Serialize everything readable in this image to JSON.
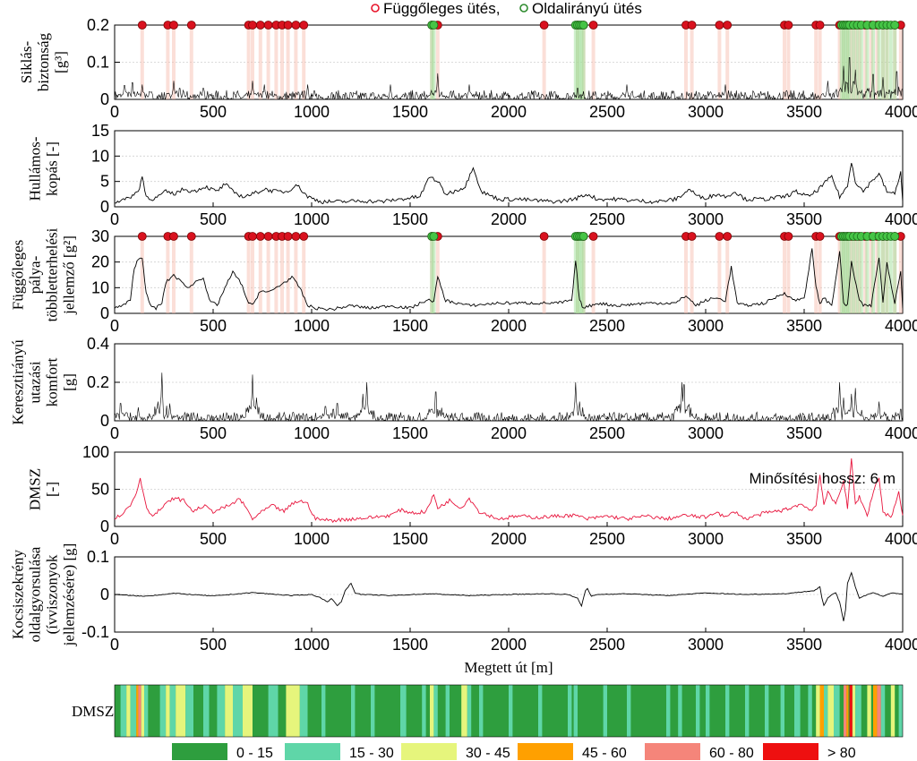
{
  "chart_data": [
    {
      "type": "line",
      "ylabel": [
        "Siklás-",
        "biztonság",
        "[g³]"
      ],
      "ylim": [
        0,
        0.2
      ],
      "yticks": [
        "0",
        "0.1",
        "0.2"
      ],
      "xlim": [
        0,
        4000
      ],
      "xticks": [
        "0",
        "500",
        "1000",
        "1500",
        "2000",
        "2500",
        "3000",
        "3500",
        "4000"
      ],
      "legend": {
        "items": [
          {
            "label": "Függőleges ütés,",
            "color": "#e8142a"
          },
          {
            "label": "Oldalirányú ütés",
            "color": "#2e8b2e"
          }
        ]
      },
      "peaks": [
        [
          50,
          0.05
        ],
        [
          90,
          0.06
        ],
        [
          140,
          0.04
        ],
        [
          300,
          0.05
        ],
        [
          330,
          0.04
        ],
        [
          450,
          0.04
        ],
        [
          700,
          0.05
        ],
        [
          760,
          0.04
        ],
        [
          980,
          0.04
        ],
        [
          1400,
          0.04
        ],
        [
          1640,
          0.07
        ],
        [
          1800,
          0.04
        ],
        [
          2350,
          0.04
        ],
        [
          2600,
          0.04
        ],
        [
          3100,
          0.04
        ],
        [
          3620,
          0.05
        ],
        [
          3700,
          0.09
        ],
        [
          3730,
          0.15
        ],
        [
          3760,
          0.08
        ],
        [
          3850,
          0.09
        ],
        [
          3900,
          0.06
        ],
        [
          3970,
          0.1
        ]
      ],
      "vertical_hits": [
        140,
        270,
        300,
        390,
        680,
        700,
        740,
        780,
        820,
        850,
        880,
        920,
        960,
        1610,
        1640,
        2180,
        2350,
        2380,
        2430,
        2900,
        2930,
        3070,
        3110,
        3400,
        3420,
        3560,
        3580,
        3680,
        3700,
        3720,
        3740,
        3760,
        3780,
        3810,
        3840,
        3870,
        3900,
        3920,
        3960,
        3990
      ],
      "lateral_hits": [
        1610,
        1620,
        2340,
        2350,
        2360,
        2370,
        2380,
        3690,
        3700,
        3710,
        3720,
        3730,
        3750,
        3770,
        3790,
        3820,
        3850,
        3880,
        3900,
        3920,
        3940,
        3960
      ]
    },
    {
      "type": "line",
      "ylabel": [
        "Hullámos-",
        "kopás [-]"
      ],
      "ylim": [
        0,
        15
      ],
      "yticks": [
        "0",
        "5",
        "10",
        "15"
      ],
      "xlim": [
        0,
        4000
      ],
      "xticks": [
        "0",
        "500",
        "1000",
        "1500",
        "2000",
        "2500",
        "3000",
        "3500",
        "4000"
      ],
      "x": [
        0,
        60,
        120,
        140,
        160,
        200,
        260,
        300,
        350,
        400,
        460,
        520,
        560,
        600,
        650,
        700,
        760,
        820,
        880,
        920,
        980,
        1050,
        1150,
        1250,
        1350,
        1450,
        1550,
        1600,
        1640,
        1680,
        1720,
        1780,
        1820,
        1860,
        1950,
        2050,
        2150,
        2250,
        2330,
        2400,
        2450,
        2550,
        2650,
        2750,
        2850,
        2920,
        2960,
        3000,
        3060,
        3100,
        3150,
        3200,
        3300,
        3400,
        3460,
        3520,
        3560,
        3600,
        3640,
        3680,
        3720,
        3740,
        3760,
        3800,
        3840,
        3880,
        3920,
        3960,
        3990,
        4000
      ],
      "y": [
        1,
        1.5,
        3,
        6,
        2,
        1.5,
        3,
        2.5,
        3.5,
        3,
        4,
        3,
        4.5,
        3,
        2,
        2.5,
        3.5,
        3,
        3,
        4.5,
        2,
        1,
        1,
        1.2,
        1,
        1.5,
        2,
        6,
        5,
        2.5,
        3,
        4,
        8,
        3,
        1.5,
        1.5,
        1.2,
        1,
        1.5,
        2.5,
        1.5,
        1.5,
        1.2,
        1,
        1.5,
        3.5,
        2,
        1.8,
        2.5,
        2,
        3,
        1.5,
        1.5,
        2,
        3,
        2,
        3,
        4.5,
        6,
        2,
        4,
        9,
        5,
        3,
        5,
        6.5,
        3,
        2.5,
        7,
        1
      ]
    },
    {
      "type": "line",
      "ylabel": [
        "Függőleges",
        "pálya-",
        "többletterhelési",
        "jellemző [g²]"
      ],
      "ylim": [
        0,
        30
      ],
      "yticks": [
        "0",
        "10",
        "20",
        "30"
      ],
      "xlim": [
        0,
        4000
      ],
      "xticks": [
        "0",
        "500",
        "1000",
        "1500",
        "2000",
        "2500",
        "3000",
        "3500",
        "4000"
      ],
      "x": [
        0,
        40,
        80,
        100,
        120,
        140,
        160,
        180,
        210,
        240,
        260,
        300,
        340,
        380,
        420,
        450,
        480,
        520,
        560,
        600,
        640,
        680,
        700,
        740,
        780,
        820,
        860,
        900,
        940,
        980,
        1020,
        1100,
        1200,
        1300,
        1400,
        1500,
        1580,
        1620,
        1640,
        1680,
        1800,
        1950,
        2100,
        2250,
        2320,
        2340,
        2360,
        2380,
        2450,
        2550,
        2700,
        2850,
        2900,
        2950,
        3000,
        3050,
        3100,
        3130,
        3160,
        3200,
        3300,
        3400,
        3450,
        3500,
        3540,
        3560,
        3580,
        3600,
        3640,
        3680,
        3700,
        3720,
        3740,
        3780,
        3800,
        3840,
        3880,
        3900,
        3920,
        3960,
        3990,
        4000
      ],
      "y": [
        2,
        3,
        5,
        18,
        21,
        22,
        8,
        3,
        2,
        4,
        12,
        15,
        12,
        10,
        13,
        14,
        5,
        3,
        10,
        16,
        12,
        4,
        3,
        9,
        8,
        10,
        12,
        14,
        10,
        3,
        2,
        1.5,
        3,
        2,
        3,
        2,
        5,
        5,
        14,
        5,
        3,
        4,
        4,
        4,
        5,
        20,
        5,
        2,
        4,
        3,
        4,
        4,
        7,
        3,
        5,
        6,
        5,
        18,
        4,
        3,
        4,
        8,
        5,
        6,
        25,
        10,
        4,
        6,
        3,
        24,
        4,
        3,
        20,
        5,
        3,
        3,
        22,
        4,
        20,
        4,
        17,
        2
      ]
    },
    {
      "type": "line",
      "ylabel": [
        "Keresztirányú",
        "utazási",
        "komfort",
        "[g]"
      ],
      "ylim": [
        0,
        0.4
      ],
      "yticks": [
        "0",
        "0.2",
        "0.4"
      ],
      "xlim": [
        0,
        4000
      ],
      "xticks": [
        "0",
        "500",
        "1000",
        "1500",
        "2000",
        "2500",
        "3000",
        "3500",
        "4000"
      ],
      "peaks": [
        [
          30,
          0.12
        ],
        [
          120,
          0.07
        ],
        [
          220,
          0.1
        ],
        [
          240,
          0.25
        ],
        [
          280,
          0.09
        ],
        [
          690,
          0.08
        ],
        [
          700,
          0.24
        ],
        [
          720,
          0.12
        ],
        [
          1070,
          0.1
        ],
        [
          1110,
          0.08
        ],
        [
          1130,
          0.12
        ],
        [
          1260,
          0.14
        ],
        [
          1270,
          0.08
        ],
        [
          1280,
          0.2
        ],
        [
          1610,
          0.08
        ],
        [
          1630,
          0.2
        ],
        [
          1650,
          0.07
        ],
        [
          2340,
          0.2
        ],
        [
          2360,
          0.1
        ],
        [
          2880,
          0.2
        ],
        [
          2890,
          0.25
        ],
        [
          2910,
          0.1
        ],
        [
          3680,
          0.2
        ],
        [
          3700,
          0.12
        ],
        [
          3740,
          0.14
        ],
        [
          3760,
          0.17
        ],
        [
          3880,
          0.1
        ],
        [
          3990,
          0.08
        ]
      ]
    },
    {
      "type": "line",
      "ylabel": [
        "DMSZ",
        "[-]"
      ],
      "ylim": [
        0,
        100
      ],
      "yticks": [
        "0",
        "50",
        "100"
      ],
      "xlim": [
        0,
        4000
      ],
      "xticks": [
        "0",
        "500",
        "1000",
        "1500",
        "2000",
        "2500",
        "3000",
        "3500",
        "4000"
      ],
      "annotation": "Minősítési hossz: 6 m",
      "color": "#e8143c",
      "x": [
        0,
        40,
        80,
        110,
        130,
        150,
        170,
        200,
        260,
        300,
        350,
        400,
        450,
        500,
        550,
        600,
        630,
        660,
        700,
        760,
        800,
        860,
        900,
        940,
        980,
        1020,
        1100,
        1200,
        1300,
        1400,
        1450,
        1520,
        1580,
        1620,
        1640,
        1660,
        1700,
        1760,
        1800,
        1850,
        1950,
        2050,
        2150,
        2250,
        2320,
        2350,
        2400,
        2500,
        2600,
        2700,
        2800,
        2900,
        3000,
        3050,
        3100,
        3150,
        3200,
        3300,
        3400,
        3480,
        3540,
        3560,
        3580,
        3600,
        3620,
        3660,
        3700,
        3720,
        3740,
        3760,
        3780,
        3820,
        3860,
        3880,
        3900,
        3940,
        3980,
        4000
      ],
      "y": [
        10,
        18,
        28,
        45,
        65,
        40,
        20,
        15,
        30,
        38,
        35,
        20,
        28,
        20,
        25,
        30,
        38,
        28,
        10,
        22,
        28,
        20,
        30,
        35,
        30,
        10,
        8,
        10,
        12,
        15,
        22,
        18,
        20,
        42,
        25,
        28,
        35,
        25,
        38,
        20,
        10,
        14,
        12,
        14,
        15,
        14,
        10,
        14,
        10,
        14,
        10,
        15,
        12,
        20,
        12,
        20,
        10,
        18,
        22,
        30,
        22,
        28,
        70,
        30,
        45,
        30,
        62,
        25,
        90,
        30,
        40,
        15,
        55,
        65,
        20,
        12,
        45,
        15
      ]
    },
    {
      "type": "line",
      "ylabel": [
        "Kocsiszekrény",
        "oldalgyorsulása",
        "(ívviszonyok",
        "jellemzésére) [g]"
      ],
      "xlabel": "Megtett út [m]",
      "ylim": [
        -0.1,
        0.1
      ],
      "yticks": [
        "-0.1",
        "0",
        "0.1"
      ],
      "xlim": [
        0,
        4000
      ],
      "xticks": [
        "0",
        "500",
        "1000",
        "1500",
        "2000",
        "2500",
        "3000",
        "3500",
        "4000"
      ],
      "x": [
        0,
        150,
        300,
        500,
        700,
        900,
        1000,
        1050,
        1080,
        1100,
        1130,
        1150,
        1170,
        1200,
        1220,
        1250,
        1400,
        1600,
        1800,
        2000,
        2200,
        2300,
        2350,
        2370,
        2390,
        2400,
        2420,
        2450,
        2600,
        2800,
        3000,
        3200,
        3400,
        3550,
        3580,
        3590,
        3600,
        3620,
        3640,
        3660,
        3680,
        3700,
        3710,
        3720,
        3740,
        3760,
        3780,
        3820,
        3850,
        3900,
        3950,
        4000
      ],
      "y": [
        0,
        -0.005,
        0.003,
        -0.004,
        0.005,
        -0.003,
        0,
        -0.01,
        -0.02,
        -0.01,
        -0.03,
        -0.02,
        0.01,
        0.03,
        0.005,
        0,
        -0.003,
        0.002,
        -0.003,
        0,
        0.002,
        0,
        -0.01,
        -0.03,
        0.01,
        0.015,
        -0.005,
        0,
        0.002,
        -0.003,
        0.004,
        0,
        0.002,
        0.01,
        0.02,
        -0.01,
        -0.03,
        -0.01,
        0,
        0.005,
        -0.02,
        -0.07,
        -0.04,
        0.03,
        0.058,
        0.02,
        -0.01,
        0,
        0.005,
        -0.005,
        0.005,
        0
      ]
    },
    {
      "type": "heatmap",
      "label": "DMSZ",
      "legend": [
        {
          "label": "0 - 15",
          "color": "#2e9e3e"
        },
        {
          "label": "15 - 30",
          "color": "#5fd6a8"
        },
        {
          "label": "30 - 45",
          "color": "#e6f57c"
        },
        {
          "label": "45 - 60",
          "color": "#ffa000"
        },
        {
          "label": "60 - 80",
          "color": "#f5857a"
        },
        {
          "label": "> 80",
          "color": "#ee1010"
        }
      ],
      "segments": [
        [
          0,
          30,
          1
        ],
        [
          30,
          60,
          2
        ],
        [
          60,
          80,
          3
        ],
        [
          80,
          110,
          2
        ],
        [
          110,
          120,
          4
        ],
        [
          120,
          135,
          5
        ],
        [
          135,
          150,
          3
        ],
        [
          150,
          170,
          2
        ],
        [
          170,
          230,
          1
        ],
        [
          230,
          260,
          2
        ],
        [
          260,
          280,
          3
        ],
        [
          280,
          310,
          2
        ],
        [
          310,
          360,
          3
        ],
        [
          360,
          400,
          2
        ],
        [
          400,
          450,
          1
        ],
        [
          450,
          480,
          2
        ],
        [
          480,
          520,
          1
        ],
        [
          520,
          560,
          2
        ],
        [
          560,
          600,
          3
        ],
        [
          600,
          650,
          2
        ],
        [
          650,
          700,
          3
        ],
        [
          700,
          780,
          1
        ],
        [
          780,
          830,
          2
        ],
        [
          830,
          870,
          1
        ],
        [
          870,
          940,
          3
        ],
        [
          940,
          980,
          2
        ],
        [
          980,
          1500,
          1
        ],
        [
          1050,
          1070,
          2
        ],
        [
          1200,
          1220,
          2
        ],
        [
          1300,
          1320,
          2
        ],
        [
          1450,
          1480,
          2
        ],
        [
          1560,
          1580,
          2
        ],
        [
          1600,
          1620,
          3
        ],
        [
          1620,
          1640,
          2
        ],
        [
          1680,
          1700,
          2
        ],
        [
          1760,
          1790,
          3
        ],
        [
          1790,
          1810,
          2
        ],
        [
          1850,
          1870,
          2
        ],
        [
          2000,
          2020,
          2
        ],
        [
          2150,
          2170,
          2
        ],
        [
          2300,
          2320,
          2
        ],
        [
          2330,
          2350,
          2
        ],
        [
          2350,
          2750,
          1
        ],
        [
          2480,
          2500,
          2
        ],
        [
          2600,
          2620,
          2
        ],
        [
          2800,
          2820,
          2
        ],
        [
          2860,
          2880,
          2
        ],
        [
          2950,
          2970,
          2
        ],
        [
          3000,
          3020,
          2
        ],
        [
          3100,
          3120,
          2
        ],
        [
          3200,
          3220,
          2
        ],
        [
          3300,
          3320,
          2
        ],
        [
          3380,
          3400,
          2
        ],
        [
          3450,
          3480,
          2
        ],
        [
          3520,
          3540,
          2
        ],
        [
          3560,
          3580,
          3
        ],
        [
          3580,
          3600,
          4
        ],
        [
          3600,
          3620,
          2
        ],
        [
          3620,
          3650,
          3
        ],
        [
          3650,
          3680,
          2
        ],
        [
          3700,
          3715,
          5
        ],
        [
          3715,
          3725,
          4
        ],
        [
          3730,
          3745,
          6
        ],
        [
          3745,
          3760,
          3
        ],
        [
          3760,
          3790,
          2
        ],
        [
          3820,
          3840,
          3
        ],
        [
          3850,
          3870,
          4
        ],
        [
          3870,
          3890,
          5
        ],
        [
          3890,
          3910,
          2
        ],
        [
          3940,
          3960,
          3
        ],
        [
          3980,
          4000,
          2
        ]
      ]
    }
  ]
}
